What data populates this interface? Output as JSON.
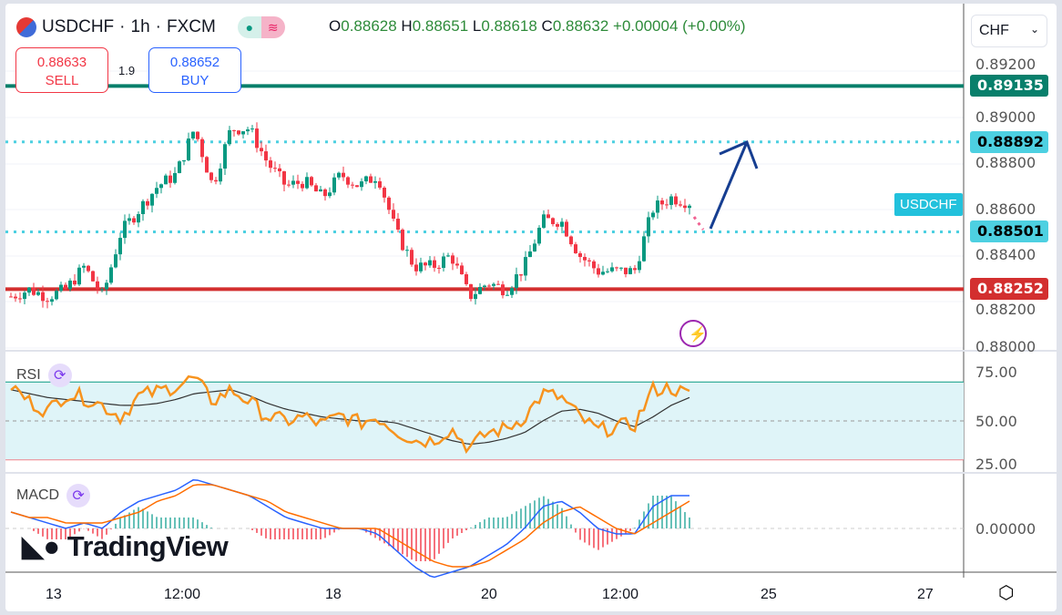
{
  "header": {
    "symbol": "USDCHF",
    "interval": "1h",
    "exchange": "FXCM",
    "open": "0.88628",
    "high": "0.88651",
    "low": "0.88618",
    "close": "0.88632",
    "change": "+0.00004 (+0.00%)",
    "o": "O",
    "h": "H",
    "l": "L",
    "c": "C"
  },
  "trade": {
    "sell_price": "0.88633",
    "sell_label": "SELL",
    "buy_price": "0.88652",
    "buy_label": "BUY",
    "spread": "1.9"
  },
  "currency": "CHF",
  "symbol_label": "USDCHF",
  "price_axis": [
    "0.89200",
    "0.89000",
    "0.88800",
    "0.88600",
    "0.88400",
    "0.88200",
    "0.88000"
  ],
  "levels": [
    {
      "value": "0.89135",
      "color": "#087f6b",
      "text": "#ffffff"
    },
    {
      "value": "0.88892",
      "color": "#4dd0e1",
      "text": "#000000"
    },
    {
      "value": "0.88501",
      "color": "#4dd0e1",
      "text": "#000000"
    },
    {
      "value": "0.88252",
      "color": "#d32f2f",
      "text": "#ffffff"
    }
  ],
  "rsi": {
    "label": "RSI",
    "axis": [
      "75.00",
      "50.00",
      "25.00"
    ]
  },
  "macd": {
    "label": "MACD",
    "axis": [
      "0.00000"
    ]
  },
  "time_axis": [
    "13",
    "12:00",
    "18",
    "20",
    "12:00",
    "25",
    "27"
  ],
  "logo": "TradingView",
  "chart_data": {
    "type": "candlestick",
    "closes": [
      0.8822,
      0.8825,
      0.8822,
      0.8825,
      0.8835,
      0.8822,
      0.885,
      0.886,
      0.887,
      0.8875,
      0.8895,
      0.887,
      0.8895,
      0.8895,
      0.888,
      0.887,
      0.8872,
      0.8865,
      0.8875,
      0.887,
      0.8875,
      0.885,
      0.8835,
      0.8835,
      0.884,
      0.8822,
      0.8828,
      0.8825,
      0.8835,
      0.8855,
      0.8855,
      0.884,
      0.8833,
      0.8833,
      0.8833,
      0.886,
      0.8865,
      0.8863
    ],
    "rsi": [
      68,
      60,
      55,
      64,
      62,
      58,
      52,
      63,
      65,
      68,
      72,
      60,
      66,
      60,
      52,
      50,
      52,
      48,
      53,
      49,
      52,
      45,
      40,
      40,
      46,
      36,
      44,
      46,
      52,
      64,
      62,
      52,
      45,
      47,
      48,
      66,
      67,
      63
    ],
    "rsi_ma": [
      66,
      64,
      62,
      61,
      60,
      59,
      58,
      58,
      59,
      61,
      64,
      65,
      66,
      63,
      59,
      56,
      54,
      52,
      51,
      50,
      50,
      49,
      46,
      43,
      40,
      38,
      39,
      41,
      44,
      50,
      55,
      56,
      54,
      50,
      47,
      52,
      58,
      62
    ],
    "macd": [
      0.0003,
      0.0002,
      0.0001,
      0.0,
      0.0001,
      0.0,
      0.0003,
      0.0005,
      0.0006,
      0.0007,
      0.0009,
      0.0008,
      0.0007,
      0.0006,
      0.0004,
      0.0002,
      0.0001,
      0.0,
      0.0,
      0.0,
      -0.0001,
      -0.0004,
      -0.0007,
      -0.0009,
      -0.0008,
      -0.0007,
      -0.0005,
      -0.0003,
      0.0,
      0.0004,
      0.0005,
      0.0003,
      0.0,
      -0.0001,
      -0.0001,
      0.0004,
      0.0006,
      0.0006
    ],
    "signal": [
      0.0003,
      0.0002,
      0.0002,
      0.0001,
      0.0001,
      0.0001,
      0.0002,
      0.0003,
      0.0005,
      0.0006,
      0.0008,
      0.0008,
      0.0007,
      0.0006,
      0.0005,
      0.0003,
      0.0002,
      0.0001,
      0.0,
      0.0,
      0.0,
      -0.0002,
      -0.0004,
      -0.0006,
      -0.0007,
      -0.0007,
      -0.0006,
      -0.0004,
      -0.0002,
      0.0001,
      0.0003,
      0.0004,
      0.0002,
      0.0,
      -0.0001,
      0.0001,
      0.0003,
      0.0005
    ],
    "ylim": [
      0.88,
      0.892
    ],
    "rsi_band": [
      30,
      70
    ]
  }
}
